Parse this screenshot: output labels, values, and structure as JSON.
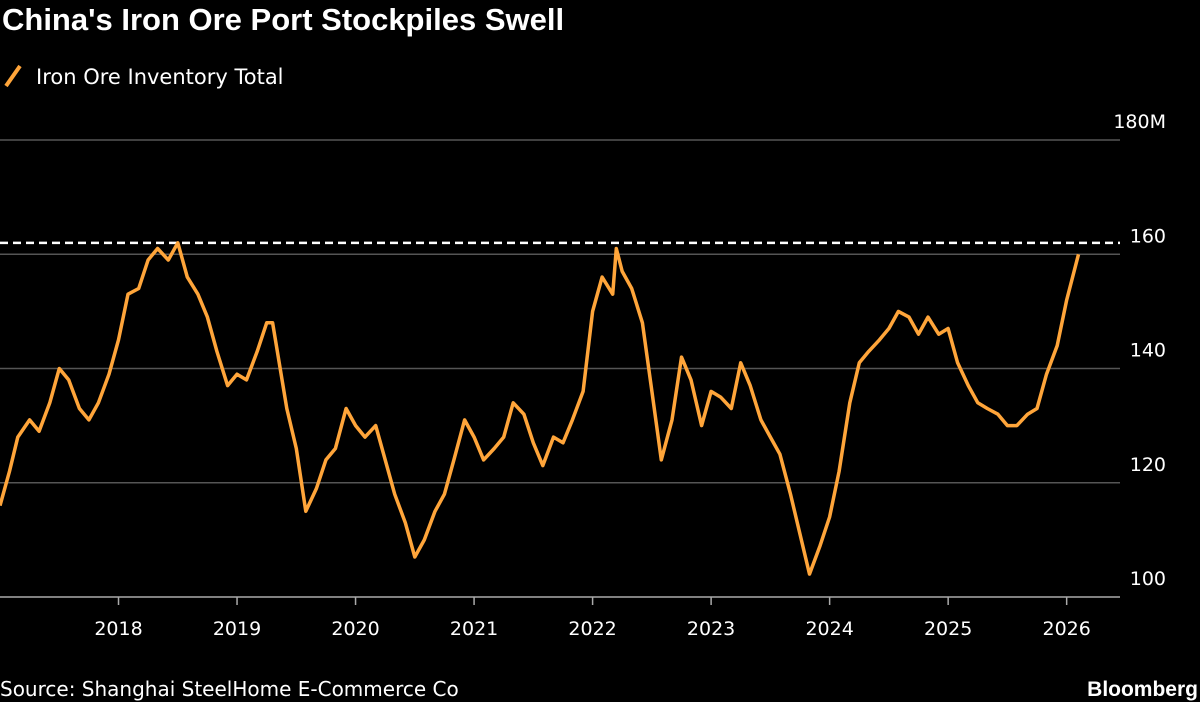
{
  "chart_data": {
    "type": "line",
    "title": "China's Iron Ore Port Stockpiles Swell",
    "source": "Source: Shanghai SteelHome E-Commerce Co",
    "brand": "Bloomberg",
    "series": [
      {
        "name": "Iron Ore Inventory Total",
        "color": "#ffa53a",
        "x": [
          2017.0,
          2017.08,
          2017.15,
          2017.25,
          2017.33,
          2017.42,
          2017.5,
          2017.58,
          2017.67,
          2017.75,
          2017.83,
          2017.92,
          2018.0,
          2018.08,
          2018.17,
          2018.25,
          2018.33,
          2018.42,
          2018.5,
          2018.58,
          2018.67,
          2018.75,
          2018.83,
          2018.92,
          2019.0,
          2019.08,
          2019.17,
          2019.25,
          2019.3,
          2019.42,
          2019.5,
          2019.58,
          2019.67,
          2019.75,
          2019.83,
          2019.92,
          2020.0,
          2020.08,
          2020.17,
          2020.25,
          2020.33,
          2020.42,
          2020.5,
          2020.58,
          2020.67,
          2020.75,
          2020.83,
          2020.92,
          2021.0,
          2021.08,
          2021.17,
          2021.25,
          2021.33,
          2021.42,
          2021.5,
          2021.58,
          2021.67,
          2021.75,
          2021.83,
          2021.92,
          2022.0,
          2022.08,
          2022.17,
          2022.2,
          2022.25,
          2022.33,
          2022.42,
          2022.5,
          2022.58,
          2022.67,
          2022.75,
          2022.83,
          2022.92,
          2023.0,
          2023.08,
          2023.17,
          2023.25,
          2023.33,
          2023.42,
          2023.5,
          2023.58,
          2023.67,
          2023.75,
          2023.83,
          2023.92,
          2024.0,
          2024.08,
          2024.17,
          2024.25,
          2024.33,
          2024.42,
          2024.5,
          2024.58,
          2024.67,
          2024.75,
          2024.83,
          2024.92,
          2025.0,
          2025.08,
          2025.17,
          2025.25,
          2025.33,
          2025.42,
          2025.5,
          2025.58,
          2025.67,
          2025.75,
          2025.83,
          2025.92,
          2026.0,
          2026.1
        ],
        "values": [
          116,
          122,
          128,
          131,
          129,
          134,
          140,
          138,
          133,
          131,
          134,
          139,
          145,
          153,
          154,
          159,
          161,
          159,
          162,
          156,
          153,
          149,
          143,
          137,
          139,
          138,
          143,
          148,
          148,
          133,
          126,
          115,
          119,
          124,
          126,
          133,
          130,
          128,
          130,
          124,
          118,
          113,
          107,
          110,
          115,
          118,
          124,
          131,
          128,
          124,
          126,
          128,
          134,
          132,
          127,
          123,
          128,
          127,
          131,
          136,
          150,
          156,
          153,
          161,
          157,
          154,
          148,
          136,
          124,
          131,
          142,
          138,
          130,
          136,
          135,
          133,
          141,
          137,
          131,
          128,
          125,
          118,
          111,
          104,
          109,
          114,
          122,
          134,
          141,
          143,
          145,
          147,
          150,
          149,
          146,
          149,
          146,
          147,
          141,
          137,
          134,
          133,
          132,
          130,
          130,
          132,
          133,
          139,
          144,
          152,
          160
        ]
      }
    ],
    "reference_line": 162,
    "xlim": [
      2017.0,
      2026.45
    ],
    "xticks": [
      2018,
      2019,
      2020,
      2021,
      2022,
      2023,
      2024,
      2025,
      2026
    ],
    "ylim": [
      100,
      180
    ],
    "yticks": [
      100,
      120,
      140,
      160,
      {
        "value": 180,
        "label": "180M"
      }
    ],
    "grid": true
  }
}
